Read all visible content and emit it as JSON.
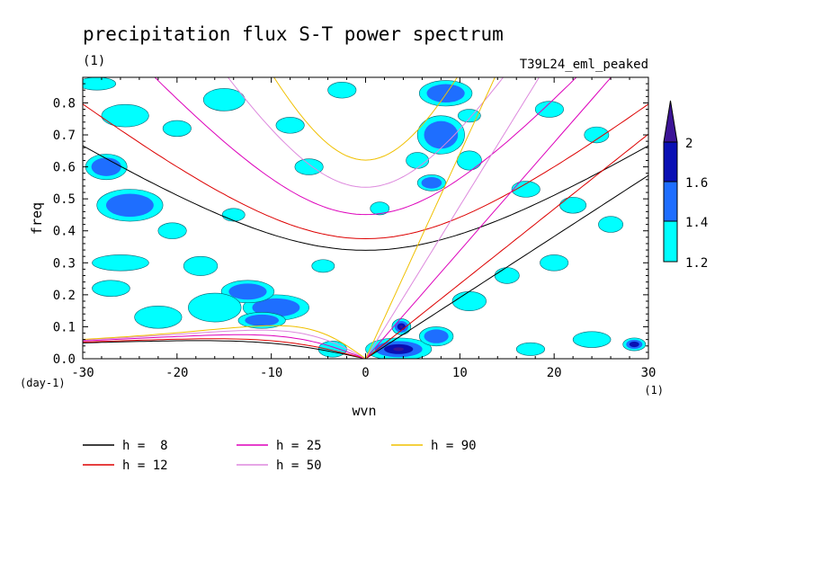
{
  "chart_data": {
    "type": "contour",
    "title": "precipitation flux S-T power spectrum",
    "subtitle_left": "(1)",
    "subtitle_right": "T39L24_eml_peaked",
    "xlabel": "wvn",
    "ylabel": "freq",
    "x_unit": "(1)",
    "y_unit": "(day-1)",
    "xlim": [
      -30,
      30
    ],
    "ylim": [
      0,
      0.88
    ],
    "x_ticks": [
      -30,
      -20,
      -10,
      0,
      10,
      20,
      30
    ],
    "x_tick_labels": [
      "-30",
      "-20",
      "-10",
      "0",
      "10",
      "20",
      "30"
    ],
    "y_ticks": [
      0,
      0.1,
      0.2,
      0.3,
      0.4,
      0.5,
      0.6,
      0.7,
      0.8
    ],
    "y_tick_labels": [
      "0.0",
      "0.1",
      "0.2",
      "0.3",
      "0.4",
      "0.5",
      "0.6",
      "0.7",
      "0.8"
    ],
    "colorbar": {
      "levels": [
        1.2,
        1.4,
        1.6,
        2
      ],
      "labels": [
        "1.2",
        "1.4",
        "1.6",
        "2"
      ],
      "colors": [
        "#00ffff",
        "#1e6eff",
        "#0a10b4",
        "#3c1496"
      ]
    },
    "dispersion_curves": [
      {
        "label": "h =  8",
        "h": 8,
        "color": "#000000"
      },
      {
        "label": "h = 12",
        "h": 12,
        "color": "#dd0000"
      },
      {
        "label": "h = 25",
        "h": 25,
        "color": "#dd00bb"
      },
      {
        "label": "h = 50",
        "h": 50,
        "color": "#dd88dd"
      },
      {
        "label": "h = 90",
        "h": 90,
        "color": "#f0c000"
      }
    ],
    "contour_blobs": [
      {
        "x": 3.5,
        "y": 0.03,
        "rx": 3.5,
        "ry": 0.035,
        "level": 3
      },
      {
        "x": 3.8,
        "y": 0.1,
        "rx": 1.0,
        "ry": 0.025,
        "level": 3
      },
      {
        "x": 7.5,
        "y": 0.07,
        "rx": 1.8,
        "ry": 0.03,
        "level": 1
      },
      {
        "x": 11.0,
        "y": 0.18,
        "rx": 1.8,
        "ry": 0.03,
        "level": 0
      },
      {
        "x": -9.5,
        "y": 0.16,
        "rx": 3.5,
        "ry": 0.04,
        "level": 1
      },
      {
        "x": -12.5,
        "y": 0.21,
        "rx": 2.8,
        "ry": 0.035,
        "level": 1
      },
      {
        "x": -11.0,
        "y": 0.12,
        "rx": 2.5,
        "ry": 0.025,
        "level": 1
      },
      {
        "x": -16.0,
        "y": 0.16,
        "rx": 2.8,
        "ry": 0.045,
        "level": 0
      },
      {
        "x": -22.0,
        "y": 0.13,
        "rx": 2.5,
        "ry": 0.035,
        "level": 0
      },
      {
        "x": -17.5,
        "y": 0.29,
        "rx": 1.8,
        "ry": 0.03,
        "level": 0
      },
      {
        "x": -26.0,
        "y": 0.3,
        "rx": 3.0,
        "ry": 0.025,
        "level": 0
      },
      {
        "x": -25.0,
        "y": 0.48,
        "rx": 3.5,
        "ry": 0.05,
        "level": 1
      },
      {
        "x": -27.5,
        "y": 0.6,
        "rx": 2.2,
        "ry": 0.04,
        "level": 1
      },
      {
        "x": -28.5,
        "y": 0.86,
        "rx": 2.0,
        "ry": 0.02,
        "level": 0
      },
      {
        "x": -25.5,
        "y": 0.76,
        "rx": 2.5,
        "ry": 0.035,
        "level": 0
      },
      {
        "x": -20.0,
        "y": 0.72,
        "rx": 1.5,
        "ry": 0.025,
        "level": 0
      },
      {
        "x": -15.0,
        "y": 0.81,
        "rx": 2.2,
        "ry": 0.035,
        "level": 0
      },
      {
        "x": -8.0,
        "y": 0.73,
        "rx": 1.5,
        "ry": 0.025,
        "level": 0
      },
      {
        "x": -2.5,
        "y": 0.84,
        "rx": 1.5,
        "ry": 0.025,
        "level": 0
      },
      {
        "x": 8.0,
        "y": 0.7,
        "rx": 2.5,
        "ry": 0.06,
        "level": 1
      },
      {
        "x": 8.5,
        "y": 0.83,
        "rx": 2.8,
        "ry": 0.04,
        "level": 1
      },
      {
        "x": 5.5,
        "y": 0.62,
        "rx": 1.2,
        "ry": 0.025,
        "level": 0
      },
      {
        "x": 7.0,
        "y": 0.55,
        "rx": 1.5,
        "ry": 0.025,
        "level": 1
      },
      {
        "x": 11.0,
        "y": 0.62,
        "rx": 1.3,
        "ry": 0.03,
        "level": 0
      },
      {
        "x": 17.0,
        "y": 0.53,
        "rx": 1.5,
        "ry": 0.025,
        "level": 0
      },
      {
        "x": 22.0,
        "y": 0.48,
        "rx": 1.4,
        "ry": 0.025,
        "level": 0
      },
      {
        "x": 26.0,
        "y": 0.42,
        "rx": 1.3,
        "ry": 0.025,
        "level": 0
      },
      {
        "x": 20.0,
        "y": 0.3,
        "rx": 1.5,
        "ry": 0.025,
        "level": 0
      },
      {
        "x": 15.0,
        "y": 0.26,
        "rx": 1.3,
        "ry": 0.025,
        "level": 0
      },
      {
        "x": 24.0,
        "y": 0.06,
        "rx": 2.0,
        "ry": 0.025,
        "level": 0
      },
      {
        "x": 28.5,
        "y": 0.045,
        "rx": 1.2,
        "ry": 0.02,
        "level": 2
      },
      {
        "x": 17.5,
        "y": 0.03,
        "rx": 1.5,
        "ry": 0.02,
        "level": 0
      },
      {
        "x": -3.5,
        "y": 0.03,
        "rx": 1.5,
        "ry": 0.025,
        "level": 0
      },
      {
        "x": -6.0,
        "y": 0.6,
        "rx": 1.5,
        "ry": 0.025,
        "level": 0
      },
      {
        "x": -14.0,
        "y": 0.45,
        "rx": 1.2,
        "ry": 0.02,
        "level": 0
      },
      {
        "x": -4.5,
        "y": 0.29,
        "rx": 1.2,
        "ry": 0.02,
        "level": 0
      },
      {
        "x": 19.5,
        "y": 0.78,
        "rx": 1.5,
        "ry": 0.025,
        "level": 0
      },
      {
        "x": 24.5,
        "y": 0.7,
        "rx": 1.3,
        "ry": 0.025,
        "level": 0
      },
      {
        "x": 1.5,
        "y": 0.47,
        "rx": 1.0,
        "ry": 0.02,
        "level": 0
      },
      {
        "x": 11.0,
        "y": 0.76,
        "rx": 1.2,
        "ry": 0.02,
        "level": 0
      },
      {
        "x": -27.0,
        "y": 0.22,
        "rx": 2.0,
        "ry": 0.025,
        "level": 0
      },
      {
        "x": -20.5,
        "y": 0.4,
        "rx": 1.5,
        "ry": 0.025,
        "level": 0
      }
    ]
  }
}
